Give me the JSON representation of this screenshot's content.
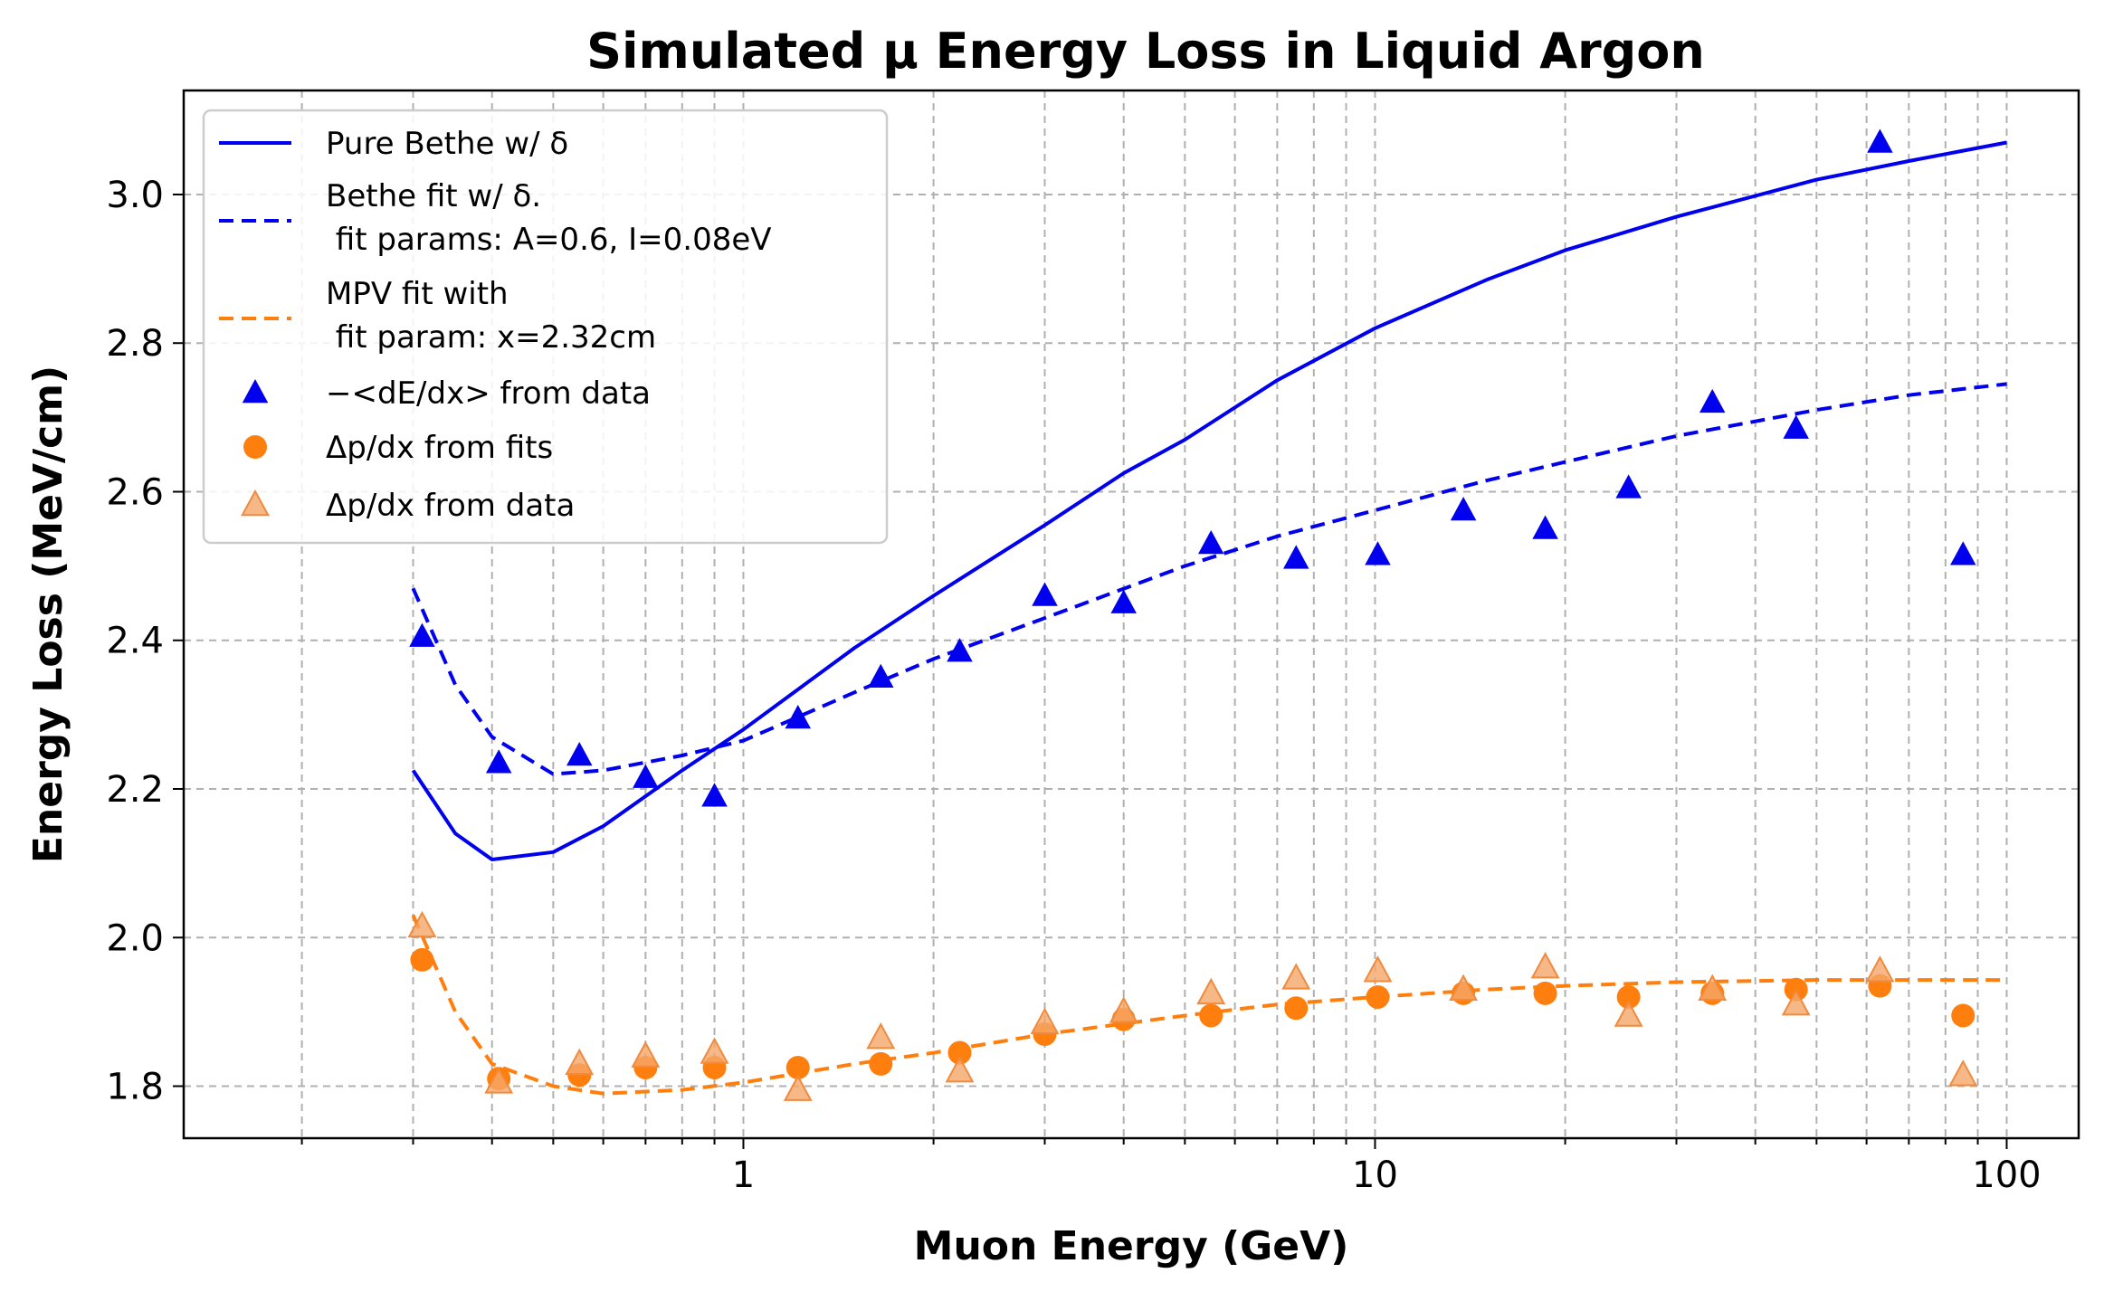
{
  "chart_data": {
    "type": "scatter",
    "title": "Simulated μ Energy Loss in Liquid Argon",
    "xlabel": "Muon Energy (GeV)",
    "ylabel": "Energy Loss (MeV/cm)",
    "x_scale": "log",
    "xlim": [
      0.13,
      130
    ],
    "ylim": [
      1.73,
      3.14
    ],
    "x_ticks": [
      {
        "value": 1,
        "label": "1"
      },
      {
        "value": 10,
        "label": "10"
      },
      {
        "value": 100,
        "label": "100"
      }
    ],
    "y_ticks": [
      {
        "value": 1.8,
        "label": "1.8"
      },
      {
        "value": 2.0,
        "label": "2.0"
      },
      {
        "value": 2.2,
        "label": "2.2"
      },
      {
        "value": 2.4,
        "label": "2.4"
      },
      {
        "value": 2.6,
        "label": "2.6"
      },
      {
        "value": 2.8,
        "label": "2.8"
      },
      {
        "value": 3.0,
        "label": "3.0"
      }
    ],
    "grid": true,
    "legend_position": "top-left",
    "series": [
      {
        "name": "Pure Bethe w/ δ",
        "kind": "line",
        "style": "solid",
        "color": "#0000ee",
        "x": [
          0.3,
          0.35,
          0.4,
          0.5,
          0.6,
          0.8,
          1.0,
          1.5,
          2,
          3,
          4,
          5,
          7,
          10,
          15,
          20,
          30,
          50,
          70,
          100
        ],
        "y": [
          2.225,
          2.14,
          2.105,
          2.115,
          2.15,
          2.225,
          2.28,
          2.39,
          2.46,
          2.555,
          2.625,
          2.67,
          2.75,
          2.82,
          2.885,
          2.925,
          2.97,
          3.02,
          3.045,
          3.07
        ]
      },
      {
        "name": "Bethe fit w/ δ.\n fit params: A=0.6, I=0.08eV",
        "kind": "line",
        "style": "dashed",
        "color": "#0000ee",
        "x": [
          0.3,
          0.35,
          0.4,
          0.5,
          0.6,
          0.8,
          1.0,
          1.5,
          2,
          3,
          5,
          7,
          10,
          15,
          20,
          30,
          50,
          70,
          100
        ],
        "y": [
          2.47,
          2.34,
          2.27,
          2.22,
          2.225,
          2.245,
          2.265,
          2.33,
          2.375,
          2.43,
          2.5,
          2.54,
          2.575,
          2.615,
          2.64,
          2.675,
          2.71,
          2.73,
          2.745
        ]
      },
      {
        "name": "MPV fit with\n fit param: x=2.32cm",
        "kind": "line",
        "style": "dashed",
        "color": "#ff7f0e",
        "x": [
          0.3,
          0.35,
          0.4,
          0.5,
          0.6,
          0.8,
          1.0,
          1.5,
          2,
          3,
          5,
          7,
          10,
          15,
          20,
          30,
          50,
          70,
          100
        ],
        "y": [
          2.03,
          1.9,
          1.83,
          1.8,
          1.79,
          1.795,
          1.805,
          1.83,
          1.845,
          1.87,
          1.895,
          1.91,
          1.92,
          1.93,
          1.935,
          1.94,
          1.943,
          1.943,
          1.943
        ]
      },
      {
        "name": "−<dE/dx> from data",
        "kind": "scatter",
        "marker": "triangle",
        "color": "#0000ee",
        "x": [
          0.31,
          0.41,
          0.55,
          0.7,
          0.9,
          1.22,
          1.65,
          2.2,
          3.0,
          4.0,
          5.5,
          7.5,
          10.1,
          13.8,
          18.6,
          25.2,
          34.2,
          46.4,
          63.0,
          85.3
        ],
        "y": [
          2.405,
          2.235,
          2.245,
          2.215,
          2.19,
          2.295,
          2.35,
          2.385,
          2.46,
          2.45,
          2.53,
          2.51,
          2.515,
          2.575,
          2.55,
          2.605,
          2.72,
          2.685,
          3.07,
          2.515
        ]
      },
      {
        "name": "Δp/dx from fits",
        "kind": "scatter",
        "marker": "circle",
        "color": "#ff7f0e",
        "x": [
          0.31,
          0.41,
          0.55,
          0.7,
          0.9,
          1.22,
          1.65,
          2.2,
          3.0,
          4.0,
          5.5,
          7.5,
          10.1,
          13.8,
          18.6,
          25.2,
          34.2,
          46.4,
          63.0,
          85.3
        ],
        "y": [
          1.97,
          1.81,
          1.815,
          1.825,
          1.825,
          1.825,
          1.83,
          1.845,
          1.87,
          1.89,
          1.895,
          1.905,
          1.92,
          1.925,
          1.925,
          1.92,
          1.925,
          1.93,
          1.935,
          1.895
        ]
      },
      {
        "name": "Δp/dx from data",
        "kind": "scatter",
        "marker": "triangle",
        "color": "#f5a66a",
        "x": [
          0.31,
          0.41,
          0.55,
          0.7,
          0.9,
          1.22,
          1.65,
          2.2,
          3.0,
          4.0,
          5.5,
          7.5,
          10.1,
          13.8,
          18.6,
          25.2,
          34.2,
          46.4,
          63.0,
          85.3
        ],
        "y": [
          2.015,
          1.805,
          1.83,
          1.84,
          1.845,
          1.795,
          1.865,
          1.82,
          1.885,
          1.9,
          1.925,
          1.945,
          1.955,
          1.93,
          1.96,
          1.895,
          1.93,
          1.91,
          1.955,
          1.815
        ]
      }
    ]
  }
}
